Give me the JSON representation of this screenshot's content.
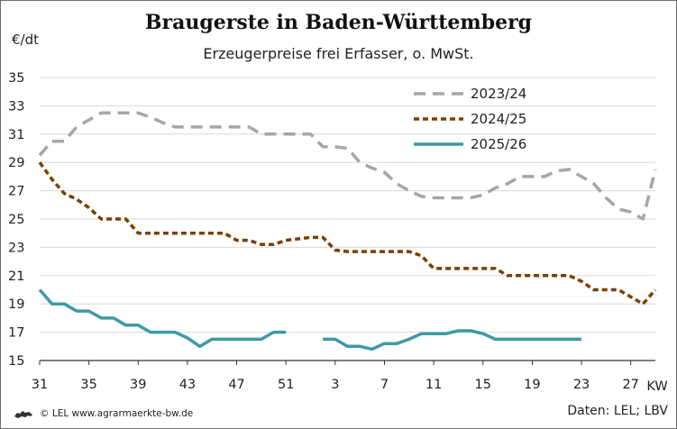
{
  "header": {
    "title": "Braugerste in Baden-Württemberg",
    "subtitle": "Erzeugerpreise frei Erfasser, o. MwSt.",
    "unit": "€/dt"
  },
  "footer": {
    "left": "© LEL www.agrarmaerkte-bw.de",
    "right": "Daten: LEL; LBV"
  },
  "chart_data": {
    "type": "line",
    "title": "Braugerste in Baden-Württemberg",
    "subtitle": "Erzeugerpreise frei Erfasser, o. MwSt.",
    "xlabel": "KW",
    "ylabel": "€/dt",
    "ylim": [
      15,
      35
    ],
    "yticks": [
      15,
      17,
      19,
      21,
      23,
      25,
      27,
      29,
      31,
      33,
      35
    ],
    "xlim": [
      31,
      81
    ],
    "xticks": [
      31,
      35,
      39,
      43,
      47,
      51,
      55,
      59,
      63,
      67,
      71,
      75,
      79
    ],
    "xtick_labels": [
      "31",
      "35",
      "39",
      "43",
      "47",
      "51",
      "3",
      "7",
      "11",
      "15",
      "19",
      "23",
      "27"
    ],
    "x_axis_label": "KW",
    "grid": "horizontal",
    "legend_position": "top-right",
    "series": [
      {
        "name": "2023/24",
        "color": "#a6a6a6",
        "style": "dashed",
        "x": [
          31,
          32,
          33,
          34,
          35,
          36,
          37,
          38,
          39,
          40,
          41,
          42,
          43,
          44,
          45,
          46,
          47,
          48,
          49,
          50,
          51,
          52,
          53,
          54,
          55,
          56,
          57,
          58,
          59,
          60,
          61,
          62,
          63,
          64,
          65,
          66,
          67,
          68,
          69,
          70,
          71,
          72,
          73,
          74,
          75,
          76,
          77,
          78,
          79,
          80,
          81
        ],
        "y": [
          29.5,
          30.5,
          30.5,
          31.5,
          32,
          32.5,
          32.5,
          32.5,
          32.5,
          32.2,
          31.8,
          31.5,
          31.5,
          31.5,
          31.5,
          31.5,
          31.5,
          31.5,
          31,
          31,
          31,
          31,
          31,
          30.1,
          30.1,
          30,
          29,
          28.6,
          28.3,
          27.5,
          27,
          26.6,
          26.5,
          26.5,
          26.5,
          26.5,
          26.7,
          27.2,
          27.5,
          28,
          28,
          28,
          28.4,
          28.5,
          28,
          27.5,
          26.5,
          25.7,
          25.5,
          25,
          28.5
        ]
      },
      {
        "name": "2024/25",
        "color": "#7b3f00",
        "style": "dotted",
        "x": [
          31,
          32,
          33,
          34,
          35,
          36,
          37,
          38,
          39,
          40,
          41,
          42,
          43,
          44,
          45,
          46,
          47,
          48,
          49,
          50,
          51,
          52,
          53,
          54,
          55,
          56,
          57,
          58,
          59,
          60,
          61,
          62,
          63,
          64,
          65,
          66,
          67,
          68,
          69,
          70,
          71,
          72,
          73,
          74,
          75,
          76,
          77,
          78,
          79,
          80,
          81
        ],
        "y": [
          29,
          27.8,
          26.8,
          26.4,
          25.8,
          25,
          25,
          25,
          24,
          24,
          24,
          24,
          24,
          24,
          24,
          24,
          23.5,
          23.5,
          23.2,
          23.2,
          23.5,
          23.6,
          23.7,
          23.7,
          22.8,
          22.7,
          22.7,
          22.7,
          22.7,
          22.7,
          22.7,
          22.4,
          21.5,
          21.5,
          21.5,
          21.5,
          21.5,
          21.5,
          21,
          21,
          21,
          21,
          21,
          21,
          20.6,
          20,
          20,
          20,
          19.5,
          19,
          20
        ]
      },
      {
        "name": "2025/26",
        "color": "#3f9aa8",
        "style": "solid",
        "segments": [
          {
            "x": [
              31,
              32,
              33,
              34,
              35,
              36,
              37,
              38,
              39,
              40,
              41,
              42,
              43,
              44,
              45,
              46,
              47,
              48,
              49,
              50,
              51
            ],
            "y": [
              20,
              19,
              19,
              18.5,
              18.5,
              18,
              18,
              17.5,
              17.5,
              17,
              17,
              17,
              16.6,
              16,
              16.5,
              16.5,
              16.5,
              16.5,
              16.5,
              17,
              17
            ]
          },
          {
            "x": [
              54,
              55,
              56,
              57,
              58,
              59,
              60,
              61,
              62,
              63,
              64,
              65,
              66,
              67,
              68,
              69,
              70,
              71,
              72,
              73,
              74,
              75
            ],
            "y": [
              16.5,
              16.5,
              16,
              16,
              15.8,
              16.2,
              16.2,
              16.5,
              16.9,
              16.9,
              16.9,
              17.1,
              17.1,
              16.9,
              16.5,
              16.5,
              16.5,
              16.5,
              16.5,
              16.5,
              16.5,
              16.5
            ]
          }
        ]
      }
    ]
  }
}
